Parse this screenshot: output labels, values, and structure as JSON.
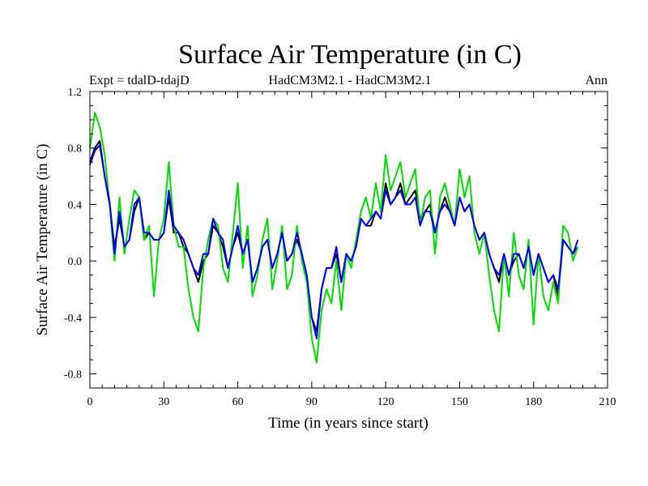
{
  "chart_data": {
    "type": "line",
    "title": "Surface Air Temperature (in C)",
    "subtitle_left": "Expt = tdalD-tdajD",
    "subtitle_center": "HadCM3M2.1 - HadCM3M2.1",
    "subtitle_right": "Ann",
    "xlabel": "Time (in years since start)",
    "ylabel": "Surface Air Temperature (in C)",
    "xlim": [
      0,
      210
    ],
    "ylim": [
      -0.9,
      1.2
    ],
    "xticks": [
      0,
      30,
      60,
      90,
      120,
      150,
      180,
      210
    ],
    "xtick_labels": [
      "0",
      "30",
      "60",
      "90",
      "120",
      "150",
      "180",
      "210"
    ],
    "yticks": [
      -0.8,
      -0.4,
      0.0,
      0.4,
      0.8,
      1.2
    ],
    "ytick_labels": [
      "-0.8",
      "-0.4",
      "0.0",
      "0.4",
      "0.8",
      "1.2"
    ],
    "x": [
      0,
      2,
      4,
      6,
      8,
      10,
      12,
      14,
      16,
      18,
      20,
      22,
      24,
      26,
      28,
      30,
      32,
      34,
      36,
      38,
      40,
      42,
      44,
      46,
      48,
      50,
      52,
      54,
      56,
      58,
      60,
      62,
      64,
      66,
      68,
      70,
      72,
      74,
      76,
      78,
      80,
      82,
      84,
      86,
      88,
      90,
      92,
      94,
      96,
      98,
      100,
      102,
      104,
      106,
      108,
      110,
      112,
      114,
      116,
      118,
      120,
      122,
      124,
      126,
      128,
      130,
      132,
      134,
      136,
      138,
      140,
      142,
      144,
      146,
      148,
      150,
      152,
      154,
      156,
      158,
      160,
      162,
      164,
      166,
      168,
      170,
      172,
      174,
      176,
      178,
      180,
      182,
      184,
      186,
      188,
      190,
      192,
      194,
      196,
      198
    ],
    "series": [
      {
        "name": "black",
        "color": "#000000",
        "values": [
          0.7,
          0.8,
          0.85,
          0.6,
          0.4,
          0.1,
          0.3,
          0.1,
          0.15,
          0.35,
          0.45,
          0.15,
          0.2,
          0.15,
          0.15,
          0.2,
          0.45,
          0.2,
          0.2,
          0.1,
          0.05,
          -0.05,
          -0.15,
          0.0,
          0.05,
          0.25,
          0.2,
          0.1,
          -0.05,
          0.1,
          0.2,
          0.05,
          0.15,
          -0.15,
          -0.05,
          0.1,
          0.15,
          -0.05,
          0.05,
          0.2,
          0.0,
          0.05,
          0.15,
          0.05,
          -0.15,
          -0.4,
          -0.5,
          -0.2,
          -0.05,
          -0.05,
          0.05,
          -0.15,
          0.05,
          0.0,
          0.1,
          0.3,
          0.25,
          0.25,
          0.35,
          0.3,
          0.55,
          0.4,
          0.45,
          0.55,
          0.4,
          0.45,
          0.5,
          0.3,
          0.35,
          0.4,
          0.2,
          0.35,
          0.45,
          0.35,
          0.25,
          0.45,
          0.35,
          0.4,
          0.25,
          0.15,
          0.2,
          0.05,
          -0.05,
          -0.15,
          0.05,
          -0.1,
          0.0,
          0.05,
          -0.05,
          0.1,
          -0.1,
          0.05,
          -0.05,
          -0.15,
          -0.1,
          -0.25,
          0.15,
          0.1,
          0.05,
          0.1
        ]
      },
      {
        "name": "green",
        "color": "#00dd00",
        "values": [
          0.8,
          1.05,
          0.95,
          0.75,
          0.4,
          0.0,
          0.45,
          0.05,
          0.3,
          0.5,
          0.45,
          0.15,
          0.25,
          -0.25,
          0.15,
          0.3,
          0.7,
          0.25,
          0.1,
          0.1,
          -0.2,
          -0.4,
          -0.5,
          -0.05,
          0.15,
          0.3,
          0.25,
          -0.05,
          -0.15,
          0.2,
          0.55,
          -0.05,
          0.25,
          -0.25,
          -0.1,
          0.15,
          0.3,
          -0.2,
          0.0,
          0.25,
          -0.2,
          -0.1,
          0.25,
          0.0,
          -0.15,
          -0.55,
          -0.72,
          -0.35,
          -0.2,
          -0.3,
          0.0,
          -0.35,
          0.05,
          -0.05,
          0.15,
          0.35,
          0.45,
          0.3,
          0.55,
          0.35,
          0.75,
          0.5,
          0.6,
          0.7,
          0.45,
          0.55,
          0.65,
          0.25,
          0.45,
          0.5,
          0.05,
          0.45,
          0.55,
          0.4,
          0.25,
          0.65,
          0.45,
          0.6,
          0.2,
          0.05,
          0.2,
          -0.1,
          -0.35,
          -0.5,
          0.05,
          -0.25,
          0.2,
          -0.1,
          -0.2,
          0.15,
          -0.45,
          0.05,
          -0.25,
          -0.35,
          -0.15,
          -0.3,
          0.25,
          0.2,
          0.0,
          0.1
        ]
      },
      {
        "name": "blue",
        "color": "#0000ff",
        "values": [
          0.68,
          0.78,
          0.82,
          0.6,
          0.42,
          0.05,
          0.35,
          0.1,
          0.15,
          0.4,
          0.45,
          0.2,
          0.2,
          0.15,
          0.15,
          0.2,
          0.5,
          0.25,
          0.2,
          0.15,
          0.05,
          -0.05,
          -0.1,
          0.05,
          0.05,
          0.3,
          0.2,
          0.15,
          -0.05,
          0.1,
          0.25,
          0.05,
          0.15,
          -0.15,
          -0.05,
          0.1,
          0.15,
          -0.05,
          0.05,
          0.2,
          0.0,
          0.05,
          0.2,
          0.05,
          -0.1,
          -0.4,
          -0.55,
          -0.2,
          -0.05,
          -0.05,
          0.1,
          -0.15,
          0.05,
          0.0,
          0.1,
          0.3,
          0.25,
          0.3,
          0.35,
          0.3,
          0.5,
          0.4,
          0.45,
          0.5,
          0.4,
          0.4,
          0.45,
          0.25,
          0.35,
          0.35,
          0.2,
          0.35,
          0.4,
          0.35,
          0.25,
          0.45,
          0.35,
          0.4,
          0.25,
          0.15,
          0.2,
          0.05,
          -0.05,
          -0.1,
          0.05,
          -0.1,
          0.05,
          0.05,
          -0.05,
          0.1,
          -0.1,
          0.05,
          -0.05,
          -0.15,
          -0.1,
          -0.2,
          0.15,
          0.1,
          0.05,
          0.15
        ]
      }
    ]
  }
}
